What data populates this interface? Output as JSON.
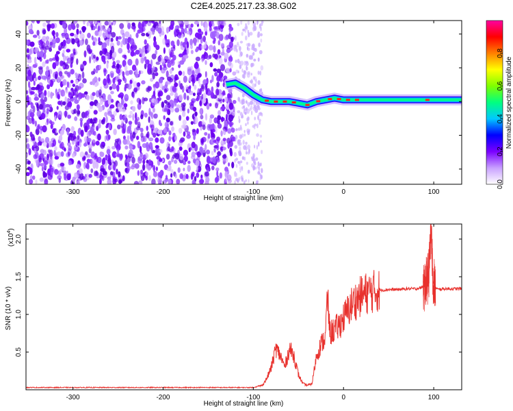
{
  "title": "C2E4.2025.217.23.38.G02",
  "chart_data": [
    {
      "type": "heatmap",
      "xlabel": "Height of straight line (km)",
      "ylabel": "Frequency (Hz)",
      "xlim": [
        -352,
        131
      ],
      "ylim": [
        -49,
        48
      ],
      "x_ticks": [
        -300,
        -200,
        -100,
        0,
        100
      ],
      "x_tick_labels": [
        "-300",
        "-200",
        "-100",
        "0",
        "100"
      ],
      "y_ticks": [
        -40,
        -20,
        0,
        20,
        40
      ],
      "y_tick_labels": [
        "-40",
        "-20",
        "0",
        "20",
        "40"
      ],
      "colorbar": {
        "label": "Normalized spectral amplitude",
        "range": [
          0,
          1
        ],
        "ticks": [
          0.0,
          0.2,
          0.4,
          0.6,
          0.8
        ],
        "tick_labels": [
          "0.0",
          "0.2",
          "0.4",
          "0.6",
          "0.8"
        ],
        "colormap": [
          "#ffffff",
          "#c8a0ff",
          "#7a00ff",
          "#0000ff",
          "#00c8ff",
          "#00ff80",
          "#7fff00",
          "#ffff00",
          "#ff8000",
          "#ff0000",
          "#ff00a0"
        ]
      },
      "signal_track": {
        "x": [
          -130,
          -120,
          -110,
          -100,
          -90,
          -80,
          -70,
          -60,
          -50,
          -40,
          -30,
          -20,
          -10,
          0,
          20,
          50,
          100,
          131
        ],
        "freq": [
          10,
          11,
          8,
          4,
          1,
          0,
          0,
          0,
          -1,
          -2,
          0,
          1,
          2,
          1,
          1,
          1,
          1,
          1
        ]
      },
      "noise_region_x": [
        -352,
        -120
      ]
    },
    {
      "type": "line",
      "xlabel": "Height of straight line (km)",
      "ylabel": "SNR (10 * v/v)",
      "multiplier_label": "(x10",
      "multiplier_exp": "4",
      "multiplier_close": ")",
      "xlim": [
        -352,
        131
      ],
      "ylim": [
        0,
        2.2
      ],
      "x_ticks": [
        -300,
        -200,
        -100,
        0,
        100
      ],
      "x_tick_labels": [
        "-300",
        "-200",
        "-100",
        "0",
        "100"
      ],
      "y_ticks": [
        0.5,
        1.0,
        1.5,
        2.0
      ],
      "y_tick_labels": [
        "0.5",
        "1.0",
        "1.5",
        "2.0"
      ],
      "series": [
        {
          "color": "#e8312d",
          "x": [
            -352,
            -300,
            -200,
            -100,
            -90,
            -85,
            -80,
            -75,
            -70,
            -65,
            -60,
            -55,
            -50,
            -45,
            -40,
            -35,
            -30,
            -25,
            -20,
            -18,
            -15,
            -10,
            -5,
            0,
            5,
            10,
            15,
            20,
            25,
            30,
            40,
            50,
            60,
            70,
            80,
            85,
            90,
            93,
            95,
            97,
            99,
            102,
            105,
            110,
            120,
            131
          ],
          "y": [
            0.03,
            0.03,
            0.03,
            0.03,
            0.06,
            0.15,
            0.3,
            0.55,
            0.45,
            0.3,
            0.55,
            0.45,
            0.2,
            0.08,
            0.06,
            0.08,
            0.45,
            0.6,
            0.7,
            1.25,
            0.75,
            0.8,
            0.85,
            0.95,
            1.05,
            1.15,
            1.2,
            1.25,
            1.28,
            1.3,
            1.32,
            1.33,
            1.33,
            1.34,
            1.34,
            1.35,
            1.38,
            1.45,
            1.6,
            2.2,
            1.45,
            1.35,
            1.33,
            1.34,
            1.34,
            1.34
          ]
        }
      ]
    }
  ]
}
